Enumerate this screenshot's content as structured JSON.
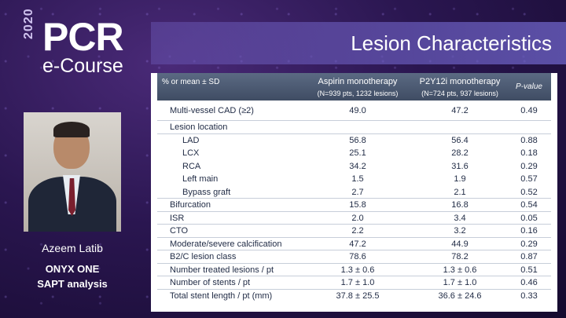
{
  "logo": {
    "year": "2020",
    "pcr": "PCR",
    "ecourse": "e-Course"
  },
  "title": "Lesion Characteristics",
  "speaker": {
    "name": "Azeem Latib",
    "line1": "ONYX ONE",
    "line2": "SAPT analysis"
  },
  "table": {
    "header": {
      "label": "% or mean ± SD",
      "col_a": "Aspirin monotherapy",
      "col_a_sub": "(N=939 pts, 1232 lesions)",
      "col_b": "P2Y12i monotherapy",
      "col_b_sub": "(N=724 pts, 937 lesions)",
      "col_p": "P-value"
    },
    "rows": [
      {
        "label": "Multi-vessel CAD (≥2)",
        "a": "49.0",
        "b": "47.2",
        "p": "0.49"
      },
      {
        "label": "Lesion location",
        "a": "",
        "b": "",
        "p": ""
      },
      {
        "label": "LAD",
        "a": "56.8",
        "b": "56.4",
        "p": "0.88"
      },
      {
        "label": "LCX",
        "a": "25.1",
        "b": "28.2",
        "p": "0.18"
      },
      {
        "label": "RCA",
        "a": "34.2",
        "b": "31.6",
        "p": "0.29"
      },
      {
        "label": "Left main",
        "a": "1.5",
        "b": "1.9",
        "p": "0.57"
      },
      {
        "label": "Bypass graft",
        "a": "2.7",
        "b": "2.1",
        "p": "0.52"
      },
      {
        "label": "Bifurcation",
        "a": "15.8",
        "b": "16.8",
        "p": "0.54"
      },
      {
        "label": "ISR",
        "a": "2.0",
        "b": "3.4",
        "p": "0.05"
      },
      {
        "label": "CTO",
        "a": "2.2",
        "b": "3.2",
        "p": "0.16"
      },
      {
        "label": "Moderate/severe calcification",
        "a": "47.2",
        "b": "44.9",
        "p": "0.29"
      },
      {
        "label": "B2/C lesion class",
        "a": "78.6",
        "b": "78.2",
        "p": "0.87"
      },
      {
        "label": "Number treated lesions / pt",
        "a": "1.3 ± 0.6",
        "b": "1.3 ± 0.6",
        "p": "0.51"
      },
      {
        "label": "Number of stents / pt",
        "a": "1.7 ± 1.0",
        "b": "1.7 ± 1.0",
        "p": "0.46"
      },
      {
        "label": "Total stent length / pt (mm)",
        "a": "37.8 ± 25.5",
        "b": "36.6 ± 24.6",
        "p": "0.33"
      }
    ]
  }
}
